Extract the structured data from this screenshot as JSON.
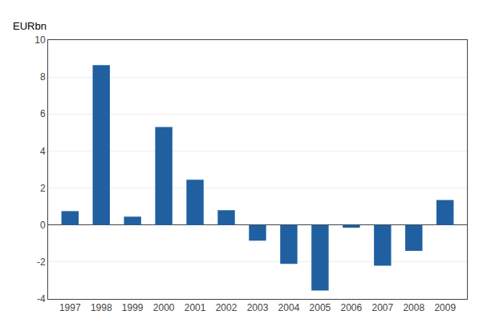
{
  "chart_data": {
    "type": "bar",
    "ylabel": "EURbn",
    "categories": [
      "1997",
      "1998",
      "1999",
      "2000",
      "2001",
      "2002",
      "2003",
      "2004",
      "2005",
      "2006",
      "2007",
      "2008",
      "2009"
    ],
    "values": [
      0.75,
      8.65,
      0.45,
      5.3,
      2.45,
      0.8,
      -0.85,
      -2.1,
      -3.55,
      -0.15,
      -2.2,
      -1.4,
      1.35
    ],
    "color": "#2060A0",
    "ylim": [
      -4,
      10
    ],
    "yticks": [
      -4,
      -2,
      0,
      2,
      4,
      6,
      8,
      10
    ],
    "grid": true
  }
}
